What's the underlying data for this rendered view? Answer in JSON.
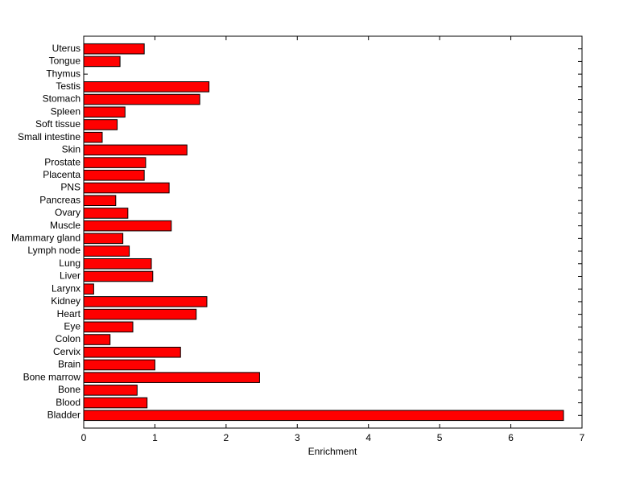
{
  "chart_data": {
    "type": "barh",
    "x_label": "Enrichment",
    "categories": [
      "Bladder",
      "Blood",
      "Bone",
      "Bone marrow",
      "Brain",
      "Cervix",
      "Colon",
      "Eye",
      "Heart",
      "Kidney",
      "Larynx",
      "Liver",
      "Lung",
      "Lymph node",
      "Mammary gland",
      "Muscle",
      "Ovary",
      "Pancreas",
      "PNS",
      "Placenta",
      "Prostate",
      "Skin",
      "Small intestine",
      "Soft tissue",
      "Spleen",
      "Stomach",
      "Testis",
      "Thymus",
      "Tongue",
      "Uterus"
    ],
    "values": [
      6.74,
      0.89,
      0.75,
      2.47,
      1.0,
      1.36,
      0.37,
      0.69,
      1.58,
      1.73,
      0.14,
      0.97,
      0.95,
      0.64,
      0.55,
      1.23,
      0.62,
      0.45,
      1.2,
      0.85,
      0.87,
      1.45,
      0.26,
      0.47,
      0.58,
      1.63,
      1.76,
      0,
      0.51,
      0.85
    ],
    "color": "#ff0000",
    "xlim": [
      0,
      7
    ],
    "xticks": [
      0,
      1,
      2,
      3,
      4,
      5,
      6,
      7
    ]
  }
}
